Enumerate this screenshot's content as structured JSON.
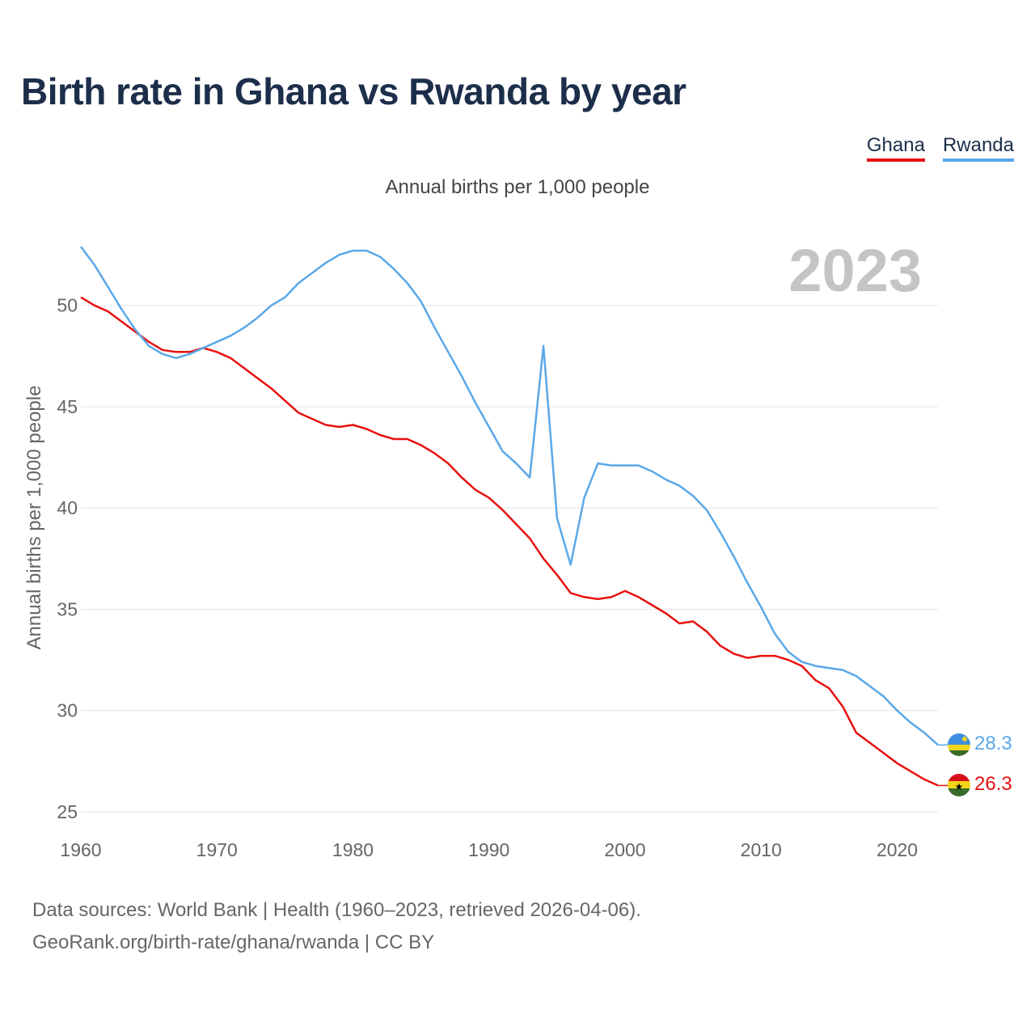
{
  "title": "Birth rate in Ghana vs Rwanda by year",
  "subtitle": "Annual births per 1,000 people",
  "legend": [
    {
      "name": "Ghana",
      "color": "#e8110f"
    },
    {
      "name": "Rwanda",
      "color": "#5aa8e8"
    }
  ],
  "source_line1": "Data sources: World Bank | Health (1960–2023, retrieved 2026-04-06).",
  "source_line2": "GeoRank.org/birth-rate/ghana/rwanda | CC BY",
  "chart_data": {
    "type": "line",
    "title": "Birth rate in Ghana vs Rwanda by year",
    "year_label": "2023",
    "xlabel": "",
    "ylabel": "Annual births per 1,000 people",
    "xlim": [
      1960,
      2023
    ],
    "ylim": [
      25,
      53.5
    ],
    "x_ticks": [
      1960,
      1970,
      1980,
      1990,
      2000,
      2010,
      2020
    ],
    "y_ticks": [
      25,
      30,
      35,
      40,
      45,
      50
    ],
    "grid": true,
    "legend_position": "top-right",
    "x": [
      1960,
      1961,
      1962,
      1963,
      1964,
      1965,
      1966,
      1967,
      1968,
      1969,
      1970,
      1971,
      1972,
      1973,
      1974,
      1975,
      1976,
      1977,
      1978,
      1979,
      1980,
      1981,
      1982,
      1983,
      1984,
      1985,
      1986,
      1987,
      1988,
      1989,
      1990,
      1991,
      1992,
      1993,
      1994,
      1995,
      1996,
      1997,
      1998,
      1999,
      2000,
      2001,
      2002,
      2003,
      2004,
      2005,
      2006,
      2007,
      2008,
      2009,
      2010,
      2011,
      2012,
      2013,
      2014,
      2015,
      2016,
      2017,
      2018,
      2019,
      2020,
      2021,
      2022,
      2023
    ],
    "series": [
      {
        "name": "Ghana",
        "color": "#e8110f",
        "end_label": "26.3",
        "values": [
          50.4,
          50.0,
          49.7,
          49.2,
          48.7,
          48.2,
          47.8,
          47.7,
          47.7,
          47.9,
          47.7,
          47.4,
          46.9,
          46.4,
          45.9,
          45.3,
          44.7,
          44.4,
          44.1,
          44.0,
          44.1,
          43.9,
          43.6,
          43.4,
          43.4,
          43.1,
          42.7,
          42.2,
          41.5,
          40.9,
          40.5,
          39.9,
          39.2,
          38.5,
          37.5,
          36.7,
          35.8,
          35.6,
          35.5,
          35.6,
          35.9,
          35.6,
          35.2,
          34.8,
          34.3,
          34.4,
          33.9,
          33.2,
          32.8,
          32.6,
          32.7,
          32.7,
          32.5,
          32.2,
          31.5,
          31.1,
          30.2,
          28.9,
          28.4,
          27.9,
          27.4,
          27.0,
          26.6,
          26.3
        ]
      },
      {
        "name": "Rwanda",
        "color": "#5aa8e8",
        "end_label": "28.3",
        "values": [
          52.9,
          52.0,
          50.9,
          49.8,
          48.8,
          48.0,
          47.6,
          47.4,
          47.6,
          47.9,
          48.2,
          48.5,
          48.9,
          49.4,
          50.0,
          50.4,
          51.1,
          51.6,
          52.1,
          52.5,
          52.7,
          52.7,
          52.4,
          51.8,
          51.1,
          50.2,
          48.9,
          47.7,
          46.5,
          45.2,
          44.0,
          42.8,
          42.2,
          41.5,
          48.0,
          39.5,
          37.2,
          40.5,
          42.2,
          42.1,
          42.1,
          42.1,
          41.8,
          41.4,
          41.1,
          40.6,
          39.9,
          38.8,
          37.6,
          36.3,
          35.1,
          33.8,
          32.9,
          32.4,
          32.2,
          32.1,
          32.0,
          31.7,
          31.2,
          30.7,
          30.0,
          29.4,
          28.9,
          28.3
        ]
      }
    ]
  }
}
